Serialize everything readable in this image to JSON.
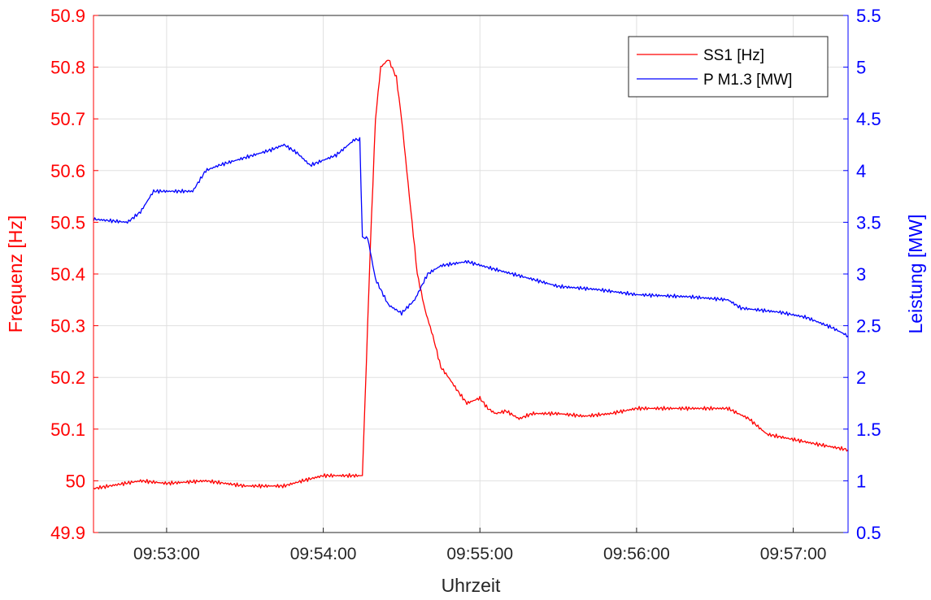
{
  "chart_data": {
    "type": "line",
    "xlabel": "Uhrzeit",
    "ylabel_left": "Frequenz [Hz]",
    "ylabel_right": "Leistung [MW]",
    "ylim_left": [
      49.9,
      50.9
    ],
    "ylim_right": [
      0.5,
      5.5
    ],
    "y_ticks_left": [
      "49.9",
      "50",
      "50.1",
      "50.2",
      "50.3",
      "50.4",
      "50.5",
      "50.6",
      "50.7",
      "50.8",
      "50.9"
    ],
    "y_ticks_right": [
      "0.5",
      "1",
      "1.5",
      "2",
      "2.5",
      "3",
      "3.5",
      "4",
      "4.5",
      "5",
      "5.5"
    ],
    "x_ticks": [
      "09:53:00",
      "09:54:00",
      "09:55:00",
      "09:56:00",
      "09:57:00"
    ],
    "xlim": [
      "09:52:32",
      "09:57:21"
    ],
    "grid": true,
    "legend_position": "top-right",
    "colors": {
      "left_axis": "#ff0000",
      "right_axis": "#0000ff",
      "grid": "#e0e0e0"
    },
    "series": [
      {
        "name": "SS1 [Hz]",
        "axis": "left",
        "color": "#ff0000",
        "x": [
          "09:52:32",
          "09:52:50",
          "09:53:00",
          "09:53:15",
          "09:53:30",
          "09:53:45",
          "09:53:52",
          "09:54:00",
          "09:54:12",
          "09:54:15",
          "09:54:18",
          "09:54:20",
          "09:54:22",
          "09:54:25",
          "09:54:28",
          "09:54:30",
          "09:54:33",
          "09:54:36",
          "09:54:39",
          "09:54:42",
          "09:54:45",
          "09:54:48",
          "09:54:52",
          "09:54:55",
          "09:55:00",
          "09:55:03",
          "09:55:06",
          "09:55:10",
          "09:55:15",
          "09:55:20",
          "09:55:30",
          "09:55:40",
          "09:55:50",
          "09:56:00",
          "09:56:10",
          "09:56:25",
          "09:56:35",
          "09:56:43",
          "09:56:50",
          "09:57:00",
          "09:57:10",
          "09:57:21"
        ],
        "values": [
          49.985,
          50.0,
          49.995,
          50.0,
          49.99,
          49.99,
          50.0,
          50.01,
          50.01,
          50.01,
          50.45,
          50.7,
          50.8,
          50.815,
          50.78,
          50.7,
          50.55,
          50.4,
          50.33,
          50.28,
          50.22,
          50.2,
          50.17,
          50.15,
          50.16,
          50.14,
          50.13,
          50.135,
          50.12,
          50.13,
          50.13,
          50.125,
          50.13,
          50.14,
          50.14,
          50.14,
          50.14,
          50.12,
          50.09,
          50.08,
          50.07,
          50.06
        ]
      },
      {
        "name": "P M1.3 [MW]",
        "axis": "right",
        "color": "#0000ff",
        "x": [
          "09:52:32",
          "09:52:45",
          "09:52:50",
          "09:52:55",
          "09:53:10",
          "09:53:15",
          "09:53:20",
          "09:53:40",
          "09:53:45",
          "09:53:50",
          "09:53:55",
          "09:54:05",
          "09:54:12",
          "09:54:14",
          "09:54:15",
          "09:54:17",
          "09:54:20",
          "09:54:25",
          "09:54:30",
          "09:54:35",
          "09:54:40",
          "09:54:45",
          "09:54:50",
          "09:54:55",
          "09:55:05",
          "09:55:20",
          "09:55:30",
          "09:55:45",
          "09:56:00",
          "09:56:20",
          "09:56:35",
          "09:56:40",
          "09:56:55",
          "09:57:05",
          "09:57:15",
          "09:57:21"
        ],
        "values": [
          3.53,
          3.5,
          3.6,
          3.8,
          3.8,
          4.0,
          4.05,
          4.2,
          4.25,
          4.17,
          4.05,
          4.15,
          4.3,
          4.3,
          3.35,
          3.35,
          2.95,
          2.7,
          2.62,
          2.75,
          3.0,
          3.08,
          3.1,
          3.12,
          3.05,
          2.95,
          2.88,
          2.85,
          2.8,
          2.78,
          2.75,
          2.67,
          2.63,
          2.58,
          2.48,
          2.4
        ]
      }
    ]
  }
}
